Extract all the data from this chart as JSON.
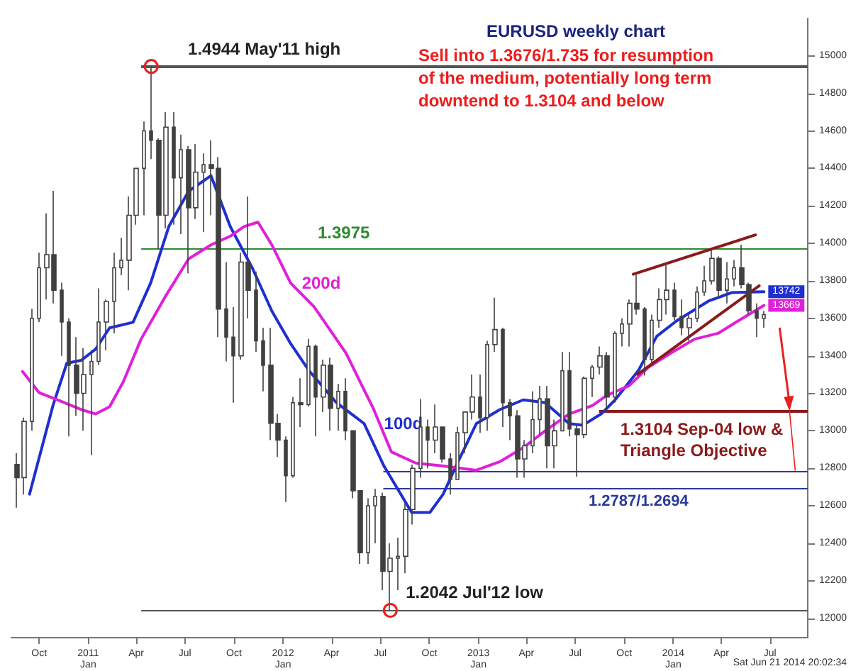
{
  "chart_data": {
    "type": "candlestick",
    "title": "EURUSD weekly chart",
    "subtitle": "Sell into 1.3676/1.735 for resumption of the medium, potentially long term downtend to 1.3104 and below",
    "annotations": [
      "Sat Jun 21 2014 20:02:34",
      "1.3975",
      "1.2787/1.2694"
    ],
    "xlim": [
      "2010-08-10",
      "2014-09-10"
    ],
    "xticks": [
      {
        "value": "2010-10",
        "label": "Oct"
      },
      {
        "value": "2011-01",
        "label": "2011\nJan"
      },
      {
        "value": "2011-04",
        "label": "Apr"
      },
      {
        "value": "2011-07",
        "label": "Jul"
      },
      {
        "value": "2011-10",
        "label": "Oct"
      },
      {
        "value": "2012-01",
        "label": "2012\nJan"
      },
      {
        "value": "2012-04",
        "label": "Apr"
      },
      {
        "value": "2012-07",
        "label": "Jul"
      },
      {
        "value": "2012-10",
        "label": "Oct"
      },
      {
        "value": "2013-01",
        "label": "2013\nJan"
      },
      {
        "value": "2013-04",
        "label": "Apr"
      },
      {
        "value": "2013-07",
        "label": "Jul"
      },
      {
        "value": "2013-10",
        "label": "Oct"
      },
      {
        "value": "2014-01",
        "label": "2014\nJan"
      },
      {
        "value": "2014-04",
        "label": "Apr"
      },
      {
        "value": "2014-07",
        "label": "Jul"
      }
    ],
    "ylim": [
      11900,
      15200
    ],
    "yticks": [
      12000,
      12200,
      12400,
      12600,
      12800,
      13000,
      13200,
      13400,
      13600,
      13800,
      14000,
      14200,
      14400,
      14600,
      14800,
      15000
    ],
    "ref_lines": [
      {
        "axis": "y",
        "value": 14944,
        "label": "1.4944 May'11 high",
        "color": "#555555"
      },
      {
        "axis": "y",
        "value": 13975,
        "label": null,
        "color": "#2e8b2e"
      },
      {
        "axis": "y",
        "value": 13104,
        "label": "1.3104 Sep-04 low & Triangle Objective",
        "color": "#8b1a1a"
      },
      {
        "axis": "y",
        "value": 12787,
        "label": null,
        "color": "#2a3a9a"
      },
      {
        "axis": "y",
        "value": 12694,
        "label": null,
        "color": "#2a3a9a"
      },
      {
        "axis": "y",
        "value": 12042,
        "label": "1.2042 Jul'12 low",
        "color": "#555555"
      }
    ],
    "series": [
      {
        "color": "#404040",
        "x": [
          "2010-08-20",
          "2010-09-03",
          "2010-09-17",
          "2010-10-01",
          "2010-10-15",
          "2010-10-29",
          "2010-11-12",
          "2010-11-26",
          "2010-12-10",
          "2010-12-24",
          "2011-01-07",
          "2011-01-21",
          "2011-02-04",
          "2011-02-18",
          "2011-03-04",
          "2011-03-18",
          "2011-04-01",
          "2011-04-15",
          "2011-04-29",
          "2011-05-13",
          "2011-05-27",
          "2011-06-10",
          "2011-06-24",
          "2011-07-08",
          "2011-07-22",
          "2011-08-05",
          "2011-08-19",
          "2011-09-02",
          "2011-09-16",
          "2011-09-30",
          "2011-10-14",
          "2011-10-28",
          "2011-11-11",
          "2011-11-25",
          "2011-12-09",
          "2011-12-23",
          "2012-01-06",
          "2012-01-20",
          "2012-02-03",
          "2012-02-17",
          "2012-03-02",
          "2012-03-16",
          "2012-03-30",
          "2012-04-13",
          "2012-04-27",
          "2012-05-11",
          "2012-05-25",
          "2012-06-08",
          "2012-06-22",
          "2012-07-06",
          "2012-07-20",
          "2012-08-03",
          "2012-08-17",
          "2012-08-31",
          "2012-09-14",
          "2012-09-28",
          "2012-10-12",
          "2012-10-26",
          "2012-11-09",
          "2012-11-23",
          "2012-12-07",
          "2012-12-21",
          "2013-01-04",
          "2013-01-18",
          "2013-02-01",
          "2013-02-15",
          "2013-03-01",
          "2013-03-15",
          "2013-03-29",
          "2013-04-12",
          "2013-04-26",
          "2013-05-10",
          "2013-05-24",
          "2013-06-07",
          "2013-06-21",
          "2013-07-05",
          "2013-07-19",
          "2013-08-02",
          "2013-08-16",
          "2013-08-30",
          "2013-09-13",
          "2013-09-27",
          "2013-10-11",
          "2013-10-25",
          "2013-11-08",
          "2013-11-22",
          "2013-12-06",
          "2013-12-20",
          "2014-01-03",
          "2014-01-17",
          "2014-01-31",
          "2014-02-14",
          "2014-02-28",
          "2014-03-14",
          "2014-03-28",
          "2014-04-11",
          "2014-04-25",
          "2014-05-09",
          "2014-05-23",
          "2014-06-06",
          "2014-06-20"
        ],
        "ohlc": [
          [
            12820,
            12880,
            12590,
            12750
          ],
          [
            12750,
            13070,
            12660,
            13050
          ],
          [
            13050,
            13650,
            13000,
            13600
          ],
          [
            13600,
            13950,
            13580,
            13870
          ],
          [
            13870,
            14160,
            13700,
            13940
          ],
          [
            13940,
            14280,
            13680,
            13750
          ],
          [
            13750,
            13790,
            13400,
            13580
          ],
          [
            13580,
            13600,
            12970,
            13350
          ],
          [
            13350,
            13500,
            13080,
            13200
          ],
          [
            13200,
            13440,
            13000,
            13300
          ],
          [
            13300,
            13430,
            12870,
            13370
          ],
          [
            13370,
            13760,
            13350,
            13580
          ],
          [
            13580,
            13700,
            13430,
            13690
          ],
          [
            13690,
            13950,
            13520,
            13870
          ],
          [
            13870,
            14030,
            13830,
            13910
          ],
          [
            13910,
            14250,
            13750,
            14150
          ],
          [
            14150,
            14400,
            14100,
            14400
          ],
          [
            14400,
            14650,
            14150,
            14600
          ],
          [
            14600,
            14944,
            14450,
            14550
          ],
          [
            14550,
            14560,
            13970,
            14150
          ],
          [
            14150,
            14700,
            14080,
            14620
          ],
          [
            14620,
            14700,
            14100,
            14350
          ],
          [
            14350,
            14580,
            14050,
            14500
          ],
          [
            14500,
            14520,
            13840,
            14190
          ],
          [
            14190,
            14530,
            14130,
            14380
          ],
          [
            14380,
            14480,
            14060,
            14420
          ],
          [
            14420,
            14550,
            14150,
            14400
          ],
          [
            14400,
            14460,
            13500,
            13650
          ],
          [
            13650,
            13900,
            13370,
            13500
          ],
          [
            13500,
            13660,
            13150,
            13400
          ],
          [
            13400,
            13950,
            13380,
            13900
          ],
          [
            13900,
            14250,
            13600,
            13750
          ],
          [
            13750,
            13850,
            13420,
            13480
          ],
          [
            13480,
            13550,
            13210,
            13350
          ],
          [
            13350,
            13550,
            12950,
            13040
          ],
          [
            13040,
            13090,
            12860,
            12950
          ],
          [
            12950,
            12970,
            12620,
            12760
          ],
          [
            12760,
            13180,
            12750,
            13150
          ],
          [
            13150,
            13280,
            13020,
            13140
          ],
          [
            13140,
            13490,
            13130,
            13450
          ],
          [
            13450,
            13460,
            12970,
            13180
          ],
          [
            13180,
            13380,
            13100,
            13350
          ],
          [
            13350,
            13390,
            13000,
            13120
          ],
          [
            13120,
            13250,
            13000,
            13210
          ],
          [
            13210,
            13280,
            12950,
            13000
          ],
          [
            13000,
            13000,
            12640,
            12680
          ],
          [
            12680,
            12680,
            12290,
            12350
          ],
          [
            12350,
            12640,
            12290,
            12600
          ],
          [
            12600,
            12690,
            12400,
            12650
          ],
          [
            12650,
            12670,
            12150,
            12250
          ],
          [
            12250,
            12400,
            12042,
            12320
          ],
          [
            12320,
            12430,
            12150,
            12330
          ],
          [
            12330,
            12620,
            12240,
            12580
          ],
          [
            12580,
            12820,
            12500,
            12800
          ],
          [
            12800,
            13170,
            12750,
            13020
          ],
          [
            13020,
            13060,
            12800,
            12950
          ],
          [
            12950,
            13140,
            12880,
            13020
          ],
          [
            13020,
            13020,
            12830,
            12850
          ],
          [
            12850,
            12880,
            12660,
            12740
          ],
          [
            12740,
            13020,
            12740,
            12990
          ],
          [
            12990,
            13100,
            12880,
            13100
          ],
          [
            13100,
            13300,
            13060,
            13180
          ],
          [
            13180,
            13300,
            12990,
            13070
          ],
          [
            13070,
            13480,
            13000,
            13460
          ],
          [
            13460,
            13710,
            13420,
            13540
          ],
          [
            13540,
            13550,
            13020,
            13150
          ],
          [
            13150,
            13170,
            12950,
            13080
          ],
          [
            13080,
            13110,
            12750,
            12850
          ],
          [
            12850,
            12950,
            12750,
            12920
          ],
          [
            12920,
            13210,
            12880,
            13060
          ],
          [
            13060,
            13240,
            12980,
            13170
          ],
          [
            13170,
            13240,
            12800,
            12920
          ],
          [
            12920,
            13060,
            12800,
            13000
          ],
          [
            13000,
            13420,
            13000,
            13320
          ],
          [
            13320,
            13420,
            12970,
            13010
          ],
          [
            13010,
            13030,
            12755,
            12980
          ],
          [
            12980,
            13290,
            12960,
            13280
          ],
          [
            13280,
            13350,
            13180,
            13340
          ],
          [
            13340,
            13450,
            13300,
            13400
          ],
          [
            13400,
            13420,
            13100,
            13180
          ],
          [
            13180,
            13530,
            13150,
            13520
          ],
          [
            13520,
            13600,
            13450,
            13570
          ],
          [
            13570,
            13700,
            13450,
            13680
          ],
          [
            13680,
            13832,
            13620,
            13650
          ],
          [
            13650,
            13660,
            13295,
            13380
          ],
          [
            13380,
            13620,
            13360,
            13590
          ],
          [
            13590,
            13760,
            13550,
            13700
          ],
          [
            13700,
            13893,
            13620,
            13750
          ],
          [
            13750,
            13790,
            13590,
            13610
          ],
          [
            13610,
            13700,
            13510,
            13550
          ],
          [
            13550,
            13620,
            13480,
            13600
          ],
          [
            13600,
            13770,
            13580,
            13740
          ],
          [
            13740,
            13880,
            13720,
            13800
          ],
          [
            13800,
            13967,
            13780,
            13920
          ],
          [
            13920,
            13930,
            13710,
            13750
          ],
          [
            13750,
            13900,
            13680,
            13810
          ],
          [
            13810,
            13910,
            13770,
            13870
          ],
          [
            13870,
            13993,
            13760,
            13780
          ],
          [
            13780,
            13790,
            13620,
            13640
          ],
          [
            13640,
            13680,
            13500,
            13600
          ],
          [
            13600,
            13640,
            13550,
            13620
          ]
        ]
      },
      {
        "type": "line",
        "name": "100d",
        "color": "#1f2fd0",
        "x": [
          "2010-09-13",
          "2010-10-27",
          "2010-11-22",
          "2010-12-19",
          "2011-01-15",
          "2011-02-10",
          "2011-03-26",
          "2011-04-28",
          "2011-06-01",
          "2011-07-08",
          "2011-08-19",
          "2011-09-24",
          "2011-11-05",
          "2011-12-11",
          "2012-01-15",
          "2012-02-18",
          "2012-04-10",
          "2012-06-01",
          "2012-07-08",
          "2012-08-29",
          "2012-10-02",
          "2012-10-27",
          "2012-11-20",
          "2012-12-28",
          "2013-02-10",
          "2013-03-26",
          "2013-05-06",
          "2013-06-20",
          "2013-07-16",
          "2013-08-19",
          "2013-09-14",
          "2013-10-28",
          "2013-12-01",
          "2014-01-07",
          "2014-03-08",
          "2014-04-20",
          "2014-06-20"
        ],
        "values": [
          12662,
          13135,
          13361,
          13376,
          13436,
          13549,
          13579,
          13789,
          14090,
          14278,
          14361,
          14090,
          13865,
          13639,
          13466,
          13323,
          13150,
          13038,
          12812,
          12564,
          12564,
          12662,
          12812,
          13038,
          13113,
          13165,
          13150,
          13038,
          13030,
          13090,
          13165,
          13323,
          13504,
          13586,
          13692,
          13737,
          13742
        ],
        "value_labels": [
          null,
          null,
          null,
          null,
          null,
          null,
          null,
          null,
          null,
          null,
          null,
          null,
          null,
          null,
          null,
          null,
          null,
          null,
          null,
          null,
          null,
          null,
          null,
          null,
          null,
          null,
          null,
          null,
          null,
          null,
          null,
          null,
          null,
          null,
          null,
          null,
          "13742"
        ]
      },
      {
        "type": "line",
        "name": "200d",
        "color": "#e020d8",
        "x": [
          "2010-08-31",
          "2010-10-01",
          "2010-11-04",
          "2010-12-19",
          "2011-01-15",
          "2011-02-10",
          "2011-03-08",
          "2011-04-10",
          "2011-05-25",
          "2011-07-08",
          "2011-08-19",
          "2011-09-24",
          "2011-10-20",
          "2011-11-15",
          "2011-12-11",
          "2012-01-15",
          "2012-02-28",
          "2012-04-28",
          "2012-06-19",
          "2012-07-22",
          "2012-09-06",
          "2012-10-28",
          "2012-12-27",
          "2013-02-10",
          "2013-03-26",
          "2013-05-06",
          "2013-06-20",
          "2013-08-03",
          "2013-08-29",
          "2013-10-10",
          "2013-11-15",
          "2013-12-27",
          "2014-02-10",
          "2014-03-26",
          "2014-04-29",
          "2014-06-20"
        ],
        "values": [
          13316,
          13203,
          13165,
          13113,
          13090,
          13128,
          13263,
          13489,
          13714,
          13917,
          13992,
          14038,
          14090,
          14113,
          13992,
          13789,
          13662,
          13414,
          13113,
          12887,
          12827,
          12812,
          12789,
          12835,
          12910,
          13000,
          13090,
          13135,
          13188,
          13240,
          13338,
          13414,
          13489,
          13520,
          13580,
          13669
        ],
        "value_labels": [
          null,
          null,
          null,
          null,
          null,
          null,
          null,
          null,
          null,
          null,
          null,
          null,
          null,
          null,
          null,
          null,
          null,
          null,
          null,
          null,
          null,
          null,
          null,
          null,
          null,
          null,
          null,
          null,
          null,
          null,
          null,
          null,
          null,
          null,
          null,
          "13669"
        ]
      },
      {
        "type": "line",
        "color": "#8b1a1a",
        "x": [
          "2013-10-18",
          "2014-06-04"
        ],
        "values": [
          13835,
          14045
        ]
      },
      {
        "type": "line",
        "color": "#8b1a1a",
        "x": [
          "2013-10-26",
          "2014-06-11"
        ],
        "values": [
          13301,
          13774
        ]
      }
    ]
  }
}
